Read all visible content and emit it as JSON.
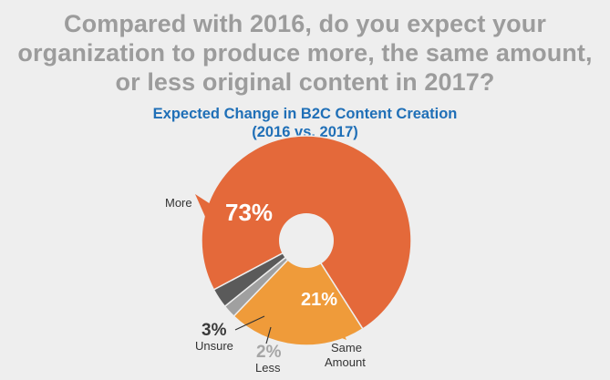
{
  "question": {
    "line1": "Compared with 2016, do you expect your",
    "line2": "organization to produce more, the same amount,",
    "line3": "or less original content in 2017?"
  },
  "colors": {
    "background": "#eeeeee",
    "question_text": "#9c9c9c",
    "title_text": "#1f6fb7",
    "more": "#e4693a",
    "same_amount": "#ef9b3a",
    "less": "#a0a0a0",
    "unsure": "#5a5a5a"
  },
  "chart_data": {
    "type": "pie",
    "variant": "donut",
    "title": "Expected Change in B2C Content Creation",
    "subtitle": "(2016 vs. 2017)",
    "slices": [
      {
        "label": "More",
        "value": 73,
        "display": "73%",
        "color": "#e4693a"
      },
      {
        "label": "Same Amount",
        "value": 21,
        "display": "21%",
        "color": "#ef9b3a"
      },
      {
        "label": "Less",
        "value": 2,
        "display": "2%",
        "color": "#a0a0a0"
      },
      {
        "label": "Unsure",
        "value": 3,
        "display": "3%",
        "color": "#5a5a5a"
      }
    ]
  }
}
